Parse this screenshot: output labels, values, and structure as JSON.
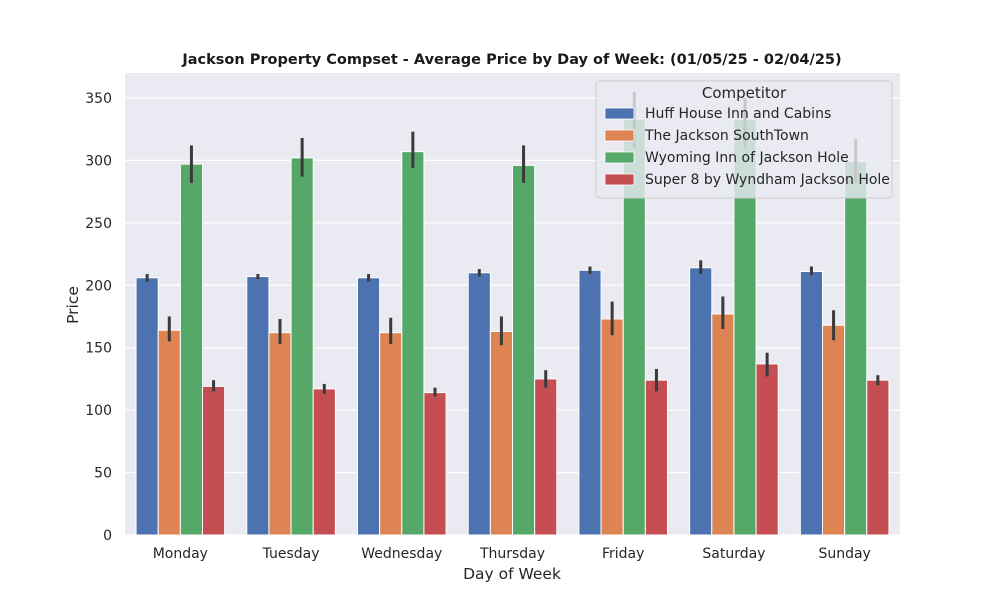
{
  "chart_data": {
    "type": "bar",
    "title": "Jackson Property Compset - Average Price by Day of Week: (01/05/25 - 02/04/25)",
    "xlabel": "Day of Week",
    "ylabel": "Price",
    "ylim": [
      0,
      370
    ],
    "yticks": [
      0,
      50,
      100,
      150,
      200,
      250,
      300,
      350
    ],
    "grid": true,
    "legend": {
      "title": "Competitor",
      "placement": "top-right"
    },
    "categories": [
      "Monday",
      "Tuesday",
      "Wednesday",
      "Thursday",
      "Friday",
      "Saturday",
      "Sunday"
    ],
    "series": [
      {
        "name": "Huff House Inn and Cabins",
        "color": "#4c72b0",
        "values": [
          206,
          207,
          206,
          210,
          212,
          214,
          211
        ],
        "ci": [
          [
            203,
            209
          ],
          [
            205,
            209
          ],
          [
            203,
            209
          ],
          [
            207,
            213
          ],
          [
            209,
            215
          ],
          [
            209,
            220
          ],
          [
            208,
            215
          ]
        ]
      },
      {
        "name": "The Jackson SouthTown",
        "color": "#dd8452",
        "values": [
          164,
          162,
          162,
          163,
          173,
          177,
          168
        ],
        "ci": [
          [
            155,
            175
          ],
          [
            153,
            173
          ],
          [
            153,
            174
          ],
          [
            152,
            175
          ],
          [
            160,
            187
          ],
          [
            165,
            191
          ],
          [
            156,
            180
          ]
        ]
      },
      {
        "name": "Wyoming Inn of Jackson Hole",
        "color": "#55a868",
        "values": [
          297,
          302,
          307,
          296,
          333,
          333,
          299
        ],
        "ci": [
          [
            282,
            312
          ],
          [
            287,
            318
          ],
          [
            294,
            323
          ],
          [
            282,
            312
          ],
          [
            310,
            355
          ],
          [
            310,
            350
          ],
          [
            282,
            317
          ]
        ]
      },
      {
        "name": "Super 8 by Wyndham Jackson Hole",
        "color": "#c44e52",
        "values": [
          119,
          117,
          114,
          125,
          124,
          137,
          124
        ],
        "ci": [
          [
            115,
            124
          ],
          [
            113,
            121
          ],
          [
            111,
            118
          ],
          [
            118,
            132
          ],
          [
            115,
            133
          ],
          [
            127,
            146
          ],
          [
            120,
            128
          ]
        ]
      }
    ]
  }
}
